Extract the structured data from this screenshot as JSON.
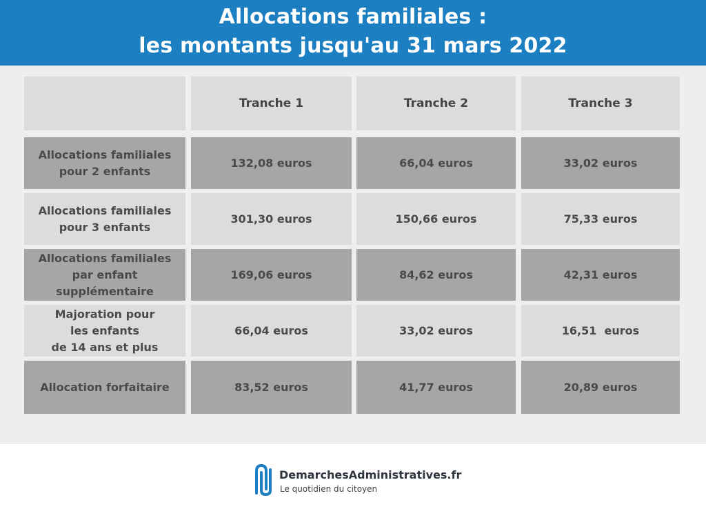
{
  "title": {
    "line1": "Allocations familiales :",
    "line2": "les montants jusqu'au 31 mars 2022"
  },
  "table": {
    "headers": [
      "",
      "Tranche 1",
      "Tranche 2",
      "Tranche 3"
    ],
    "rows": [
      {
        "label": "Allocations familiales\npour 2 enfants",
        "values": [
          "132,08 euros",
          "66,04 euros",
          "33,02 euros"
        ]
      },
      {
        "label": "Allocations familiales\npour 3 enfants",
        "values": [
          "301,30 euros",
          "150,66 euros",
          "75,33 euros"
        ]
      },
      {
        "label": "Allocations familiales\npar enfant\nsupplémentaire",
        "values": [
          "169,06 euros",
          "84,62 euros",
          "42,31 euros"
        ]
      },
      {
        "label": "Majoration pour\nles enfants\nde 14 ans et plus",
        "values": [
          "66,04 euros",
          "33,02 euros",
          "16,51  euros"
        ]
      },
      {
        "label": "Allocation forfaitaire",
        "values": [
          "83,52 euros",
          "41,77 euros",
          "20,89 euros"
        ]
      }
    ]
  },
  "footer": {
    "brand": "DemarchesAdministratives.fr",
    "tagline": "Le quotidien du citoyen",
    "logo_icon": "paperclip-icon"
  },
  "colors": {
    "banner": "#1b7fc2",
    "cell_light": "#dcdcdc",
    "cell_dark": "#a6a6a6",
    "text": "#4a4a4a",
    "logo": "#1b7fc2"
  }
}
